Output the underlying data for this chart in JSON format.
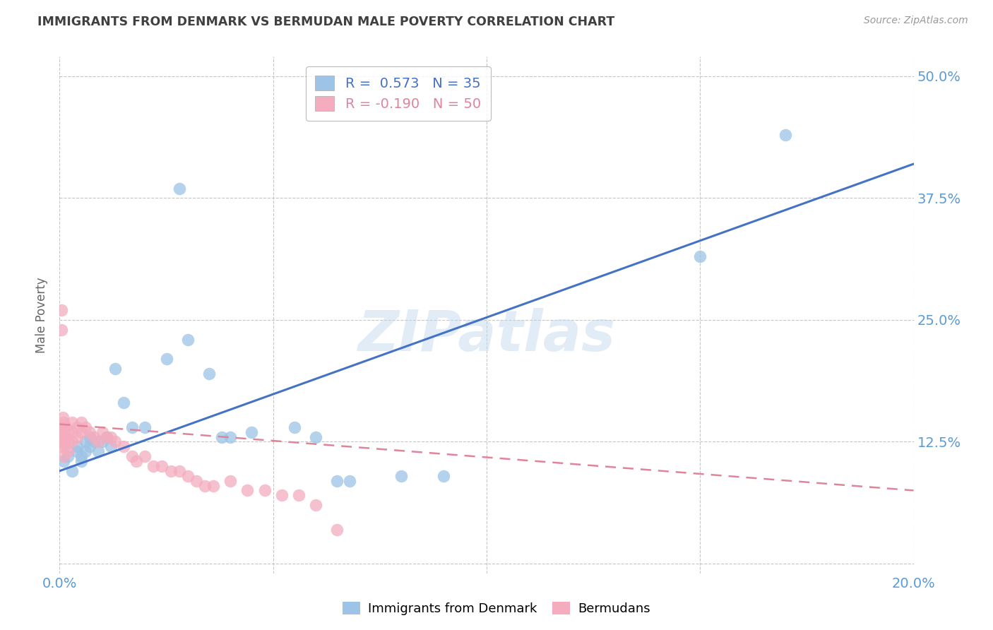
{
  "title": "IMMIGRANTS FROM DENMARK VS BERMUDAN MALE POVERTY CORRELATION CHART",
  "source": "Source: ZipAtlas.com",
  "ylabel": "Male Poverty",
  "xlim": [
    0.0,
    0.2
  ],
  "ylim": [
    -0.01,
    0.52
  ],
  "ytick_positions": [
    0.0,
    0.125,
    0.25,
    0.375,
    0.5
  ],
  "ytick_labels": [
    "",
    "12.5%",
    "25.0%",
    "37.5%",
    "50.0%"
  ],
  "xtick_positions": [
    0.0,
    0.05,
    0.1,
    0.15,
    0.2
  ],
  "xtick_labels": [
    "0.0%",
    "",
    "",
    "",
    "20.0%"
  ],
  "color_blue": "#9DC3E6",
  "color_pink": "#F4ACBE",
  "color_blue_line": "#4472C4",
  "color_pink_line": "#E0849A",
  "axis_color": "#5B9BD5",
  "grid_color": "#c0c0c0",
  "title_color": "#404040",
  "background_color": "#ffffff",
  "watermark": "ZIPatlas",
  "blue_line_x": [
    0.0,
    0.2
  ],
  "blue_line_y": [
    0.095,
    0.41
  ],
  "pink_line_x": [
    0.0,
    0.2
  ],
  "pink_line_y": [
    0.143,
    0.075
  ],
  "denmark_x": [
    0.001,
    0.002,
    0.003,
    0.004,
    0.004,
    0.005,
    0.005,
    0.006,
    0.006,
    0.007,
    0.007,
    0.008,
    0.009,
    0.01,
    0.011,
    0.012,
    0.013,
    0.015,
    0.017,
    0.02,
    0.025,
    0.028,
    0.03,
    0.035,
    0.038,
    0.04,
    0.045,
    0.055,
    0.06,
    0.065,
    0.068,
    0.08,
    0.09,
    0.15,
    0.17
  ],
  "denmark_y": [
    0.105,
    0.11,
    0.095,
    0.12,
    0.115,
    0.105,
    0.11,
    0.115,
    0.125,
    0.13,
    0.12,
    0.125,
    0.115,
    0.125,
    0.13,
    0.12,
    0.2,
    0.165,
    0.14,
    0.14,
    0.21,
    0.385,
    0.23,
    0.195,
    0.13,
    0.13,
    0.135,
    0.14,
    0.13,
    0.085,
    0.085,
    0.09,
    0.09,
    0.315,
    0.44
  ],
  "bermuda_x": [
    0.0005,
    0.0005,
    0.0005,
    0.0005,
    0.0008,
    0.0008,
    0.001,
    0.001,
    0.001,
    0.001,
    0.0012,
    0.0012,
    0.0015,
    0.002,
    0.002,
    0.002,
    0.003,
    0.003,
    0.003,
    0.004,
    0.004,
    0.005,
    0.005,
    0.006,
    0.007,
    0.008,
    0.009,
    0.01,
    0.011,
    0.012,
    0.013,
    0.015,
    0.017,
    0.018,
    0.02,
    0.022,
    0.024,
    0.026,
    0.028,
    0.03,
    0.032,
    0.034,
    0.036,
    0.04,
    0.044,
    0.048,
    0.052,
    0.056,
    0.06,
    0.065
  ],
  "bermuda_y": [
    0.26,
    0.24,
    0.13,
    0.12,
    0.15,
    0.14,
    0.145,
    0.135,
    0.125,
    0.11,
    0.13,
    0.12,
    0.14,
    0.135,
    0.125,
    0.115,
    0.145,
    0.135,
    0.125,
    0.14,
    0.13,
    0.145,
    0.135,
    0.14,
    0.135,
    0.13,
    0.125,
    0.135,
    0.13,
    0.13,
    0.125,
    0.12,
    0.11,
    0.105,
    0.11,
    0.1,
    0.1,
    0.095,
    0.095,
    0.09,
    0.085,
    0.08,
    0.08,
    0.085,
    0.075,
    0.075,
    0.07,
    0.07,
    0.06,
    0.035
  ]
}
